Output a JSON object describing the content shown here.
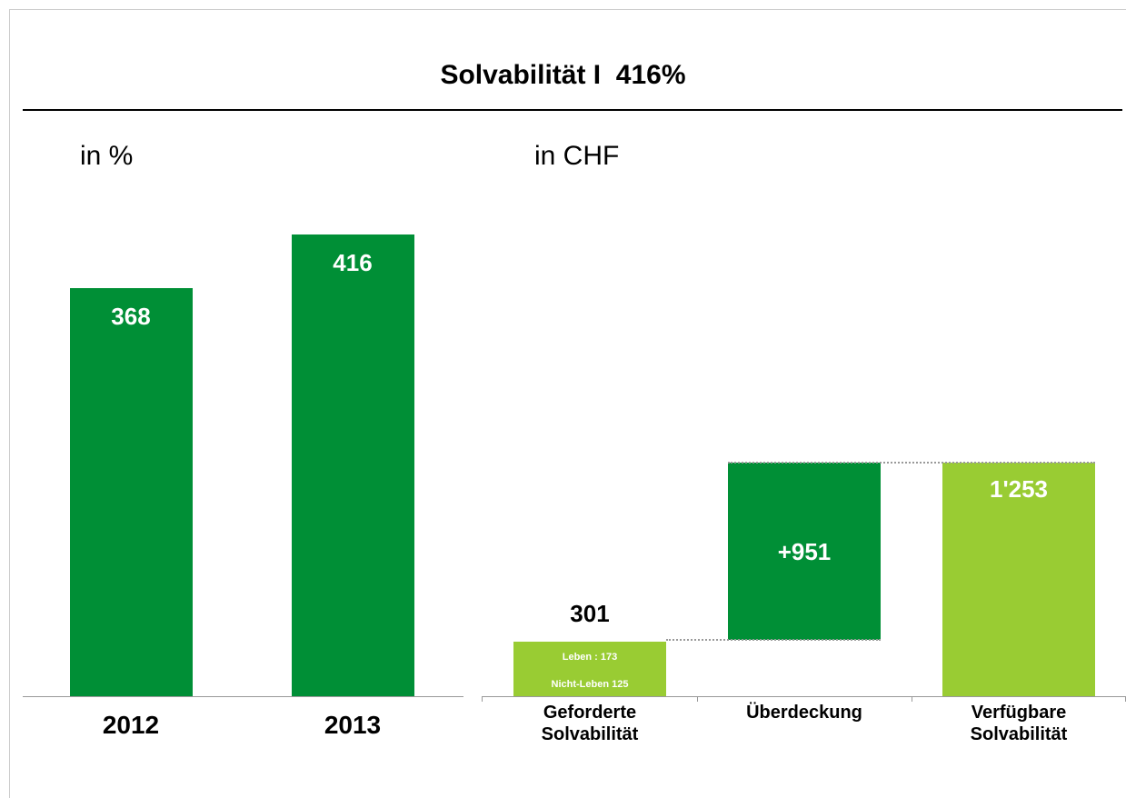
{
  "title": "Solvabilität I  416%",
  "chart_data": [
    {
      "type": "bar",
      "subtitle": "in %",
      "categories": [
        "2012",
        "2013"
      ],
      "values": [
        368,
        416
      ],
      "color": "#008f36"
    },
    {
      "type": "waterfall",
      "subtitle": "in CHF",
      "categories": [
        "Geforderte Solvabilität",
        "Überdeckung",
        "Verfügbare Solvabilität"
      ],
      "values": [
        301,
        951,
        1253
      ],
      "value_labels": [
        "301",
        "+951",
        "1'253"
      ],
      "measure": [
        "absolute",
        "relative",
        "total"
      ],
      "colors": [
        "#99cc33",
        "#008f36",
        "#99cc33"
      ],
      "stack": [
        {
          "label": "Nicht-Leben 125",
          "value": 125
        },
        {
          "label": "Leben : 173",
          "value": 173
        }
      ]
    }
  ]
}
